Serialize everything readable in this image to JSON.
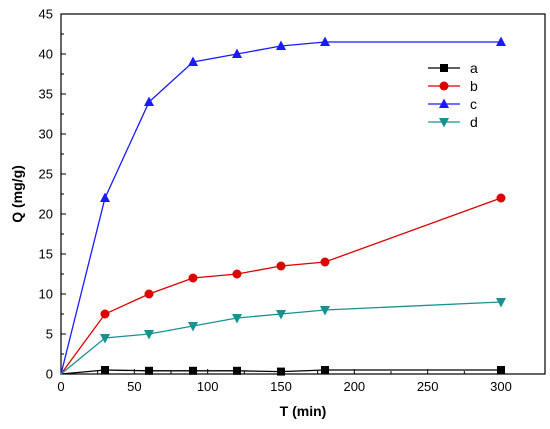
{
  "chart_data": {
    "type": "line",
    "xlabel": "T (min)",
    "ylabel": "Q (mg/g)",
    "xlim": [
      0,
      330
    ],
    "ylim": [
      0,
      45
    ],
    "xticks": [
      "0",
      "50",
      "100",
      "150",
      "200",
      "250",
      "300"
    ],
    "yticks": [
      "0",
      "5",
      "10",
      "15",
      "20",
      "25",
      "30",
      "35",
      "40",
      "45"
    ],
    "grid": false,
    "legend_position": "top-right",
    "x": [
      0,
      30,
      60,
      90,
      120,
      150,
      180,
      300
    ],
    "series": [
      {
        "name": "a",
        "color": "#000000",
        "marker": "square",
        "values": [
          0,
          0.5,
          0.4,
          0.4,
          0.4,
          0.3,
          0.5,
          0.5
        ]
      },
      {
        "name": "b",
        "color": "#dd0000",
        "marker": "circle",
        "values": [
          0,
          7.5,
          10,
          12,
          12.5,
          13.5,
          14,
          22
        ]
      },
      {
        "name": "c",
        "color": "#1a1aff",
        "marker": "triangle-up",
        "values": [
          0,
          22,
          34,
          39,
          40,
          41,
          41.5,
          41.5
        ]
      },
      {
        "name": "d",
        "color": "#199191",
        "marker": "triangle-down",
        "values": [
          0,
          4.5,
          5,
          6,
          7,
          7.5,
          8,
          9
        ]
      }
    ]
  }
}
